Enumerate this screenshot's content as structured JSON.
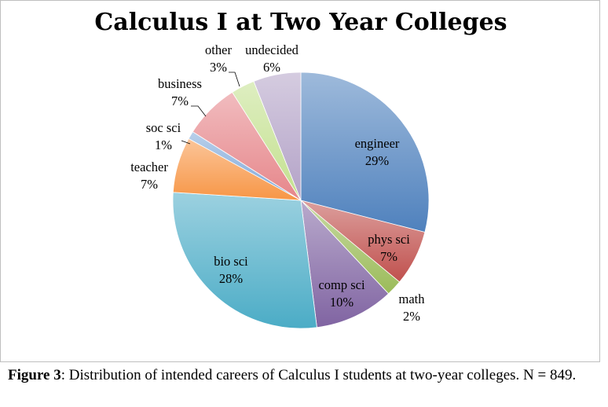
{
  "chart_data": {
    "type": "pie",
    "title": "Calculus I at Two Year Colleges",
    "slices": [
      {
        "name": "engineer",
        "label": "29%",
        "value": 29,
        "color": "#4f81bd"
      },
      {
        "name": "phys sci",
        "label": "7%",
        "value": 7,
        "color": "#c0504d"
      },
      {
        "name": "math",
        "label": "2%",
        "value": 2,
        "color": "#9bbb59"
      },
      {
        "name": "comp sci",
        "label": "10%",
        "value": 10,
        "color": "#8064a2"
      },
      {
        "name": "bio sci",
        "label": "28%",
        "value": 28,
        "color": "#4bacc6"
      },
      {
        "name": "teacher",
        "label": "7%",
        "value": 7,
        "color": "#f79646"
      },
      {
        "name": "soc sci",
        "label": "1%",
        "value": 1,
        "color": "#7da7d9"
      },
      {
        "name": "business",
        "label": "7%",
        "value": 7,
        "color": "#e6868a"
      },
      {
        "name": "other",
        "label": "3%",
        "value": 3,
        "color": "#c3e08e"
      },
      {
        "name": "undecided",
        "label": "6%",
        "value": 6,
        "color": "#b3a2c7"
      }
    ]
  },
  "caption": {
    "figure_label": "Figure 3",
    "text": ": Distribution of intended careers of Calculus I students at two-year colleges. N = 849."
  }
}
